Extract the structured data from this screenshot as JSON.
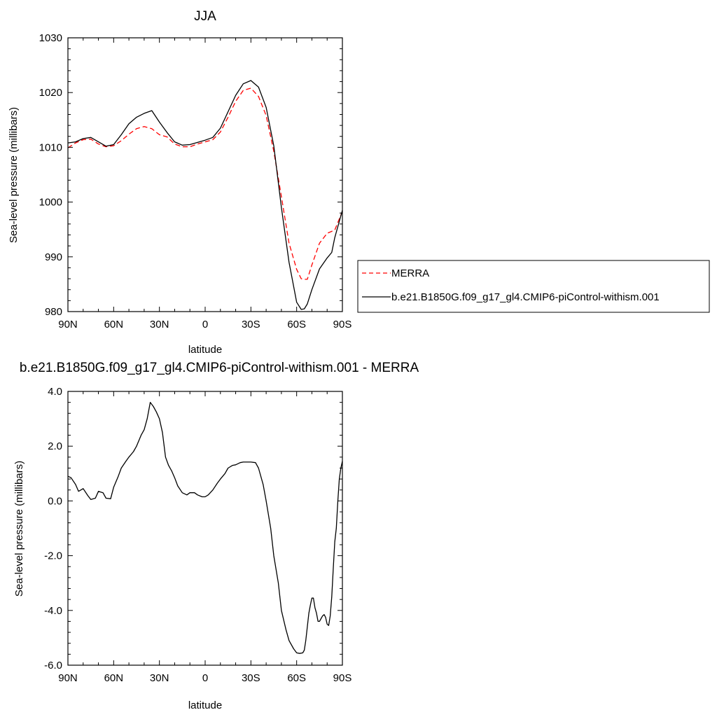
{
  "chart_data": [
    {
      "type": "line",
      "title": "JJA",
      "xlabel": "latitude",
      "ylabel": "Sea-level pressure (millibars)",
      "x_ticks": [
        "90N",
        "60N",
        "30N",
        "0",
        "30S",
        "60S",
        "90S"
      ],
      "x_tick_values": [
        90,
        60,
        30,
        0,
        -30,
        -60,
        -90
      ],
      "xlim": [
        90,
        -90
      ],
      "y_ticks": [
        "980",
        "990",
        "1000",
        "1010",
        "1020",
        "1030"
      ],
      "y_tick_values": [
        980,
        990,
        1000,
        1010,
        1020,
        1030
      ],
      "ylim": [
        980,
        1030
      ],
      "grid": false,
      "legend_position": "right",
      "series": [
        {
          "name": "MERRA",
          "color": "#ff0000",
          "style": "dashed",
          "x": [
            90,
            85,
            80,
            75,
            70,
            65,
            60,
            55,
            50,
            45,
            40,
            35,
            30,
            25,
            20,
            15,
            10,
            5,
            0,
            -5,
            -10,
            -15,
            -20,
            -25,
            -30,
            -35,
            -40,
            -45,
            -50,
            -55,
            -60,
            -63,
            -65,
            -67,
            -70,
            -75,
            -80,
            -85,
            -90
          ],
          "y": [
            1009.9,
            1010.8,
            1011.4,
            1011.5,
            1010.6,
            1010.1,
            1010.3,
            1011.2,
            1012.4,
            1013.4,
            1013.8,
            1013.4,
            1012.3,
            1011.9,
            1010.6,
            1010.1,
            1010.1,
            1010.6,
            1011.0,
            1011.4,
            1012.8,
            1015.5,
            1018.4,
            1020.4,
            1020.8,
            1019.3,
            1015.8,
            1009.3,
            1001.0,
            992.5,
            987.7,
            986.0,
            985.9,
            985.9,
            988.5,
            992.5,
            994.3,
            994.9,
            998.3
          ]
        },
        {
          "name": "b.e21.B1850G.f09_g17_gl4.CMIP6-piControl-withism.001",
          "color": "#000000",
          "style": "solid",
          "x": [
            90,
            85,
            80,
            75,
            70,
            65,
            60,
            55,
            50,
            45,
            40,
            35,
            30,
            25,
            20,
            15,
            10,
            5,
            0,
            -5,
            -10,
            -15,
            -20,
            -25,
            -30,
            -35,
            -40,
            -45,
            -50,
            -55,
            -60,
            -63,
            -65,
            -67,
            -70,
            -75,
            -80,
            -83,
            -85,
            -90
          ],
          "y": [
            1010.8,
            1011.0,
            1011.6,
            1011.8,
            1011.0,
            1010.2,
            1010.5,
            1012.3,
            1014.3,
            1015.5,
            1016.2,
            1016.7,
            1014.6,
            1012.7,
            1011.0,
            1010.4,
            1010.5,
            1010.9,
            1011.3,
            1011.8,
            1013.5,
            1016.5,
            1019.5,
            1021.6,
            1022.2,
            1021.0,
            1017.3,
            1010.3,
            999.0,
            989.0,
            981.7,
            980.4,
            980.5,
            981.4,
            984.0,
            987.8,
            989.8,
            990.8,
            993.5,
            998.5
          ]
        }
      ]
    },
    {
      "type": "line",
      "title": "b.e21.B1850G.f09_g17_gl4.CMIP6-piControl-withism.001 - MERRA",
      "xlabel": "latitude",
      "ylabel": "Sea-level pressure (millibars)",
      "x_ticks": [
        "90N",
        "60N",
        "30N",
        "0",
        "30S",
        "60S",
        "90S"
      ],
      "x_tick_values": [
        90,
        60,
        30,
        0,
        -30,
        -60,
        -90
      ],
      "xlim": [
        90,
        -90
      ],
      "y_ticks": [
        "-6.0",
        "-4.0",
        "-2.0",
        "0.0",
        "2.0",
        "4.0"
      ],
      "y_tick_values": [
        -6,
        -4,
        -2,
        0,
        2,
        4
      ],
      "ylim": [
        -6,
        4
      ],
      "grid": false,
      "series": [
        {
          "color": "#000000",
          "style": "solid",
          "x": [
            90,
            88,
            85,
            83,
            80,
            77,
            75,
            72,
            70,
            67,
            65,
            62,
            60,
            57,
            55,
            52,
            50,
            47,
            45,
            42,
            40,
            38,
            36,
            34,
            32,
            30,
            28,
            26,
            24,
            22,
            20,
            18,
            15,
            12,
            10,
            7,
            5,
            2,
            0,
            -2,
            -5,
            -8,
            -10,
            -13,
            -15,
            -18,
            -20,
            -23,
            -25,
            -28,
            -30,
            -33,
            -35,
            -38,
            -40,
            -43,
            -45,
            -48,
            -50,
            -53,
            -55,
            -58,
            -60,
            -62,
            -64,
            -65,
            -66,
            -67,
            -68,
            -69,
            -70,
            -71,
            -72,
            -73,
            -74,
            -75,
            -76,
            -77,
            -78,
            -79,
            -80,
            -81,
            -82,
            -83,
            -84,
            -85,
            -86,
            -87,
            -88,
            -89,
            -90
          ],
          "y": [
            0.9,
            0.85,
            0.6,
            0.35,
            0.45,
            0.2,
            0.05,
            0.1,
            0.35,
            0.3,
            0.1,
            0.08,
            0.5,
            0.9,
            1.2,
            1.45,
            1.6,
            1.8,
            2.0,
            2.4,
            2.6,
            3.0,
            3.6,
            3.45,
            3.25,
            3.0,
            2.5,
            1.6,
            1.3,
            1.1,
            0.85,
            0.55,
            0.3,
            0.22,
            0.3,
            0.3,
            0.22,
            0.15,
            0.15,
            0.22,
            0.4,
            0.65,
            0.8,
            1.0,
            1.2,
            1.3,
            1.32,
            1.4,
            1.42,
            1.42,
            1.42,
            1.4,
            1.2,
            0.6,
            0.0,
            -1.0,
            -2.0,
            -3.0,
            -4.0,
            -4.7,
            -5.1,
            -5.4,
            -5.55,
            -5.57,
            -5.55,
            -5.45,
            -5.1,
            -4.6,
            -4.1,
            -3.8,
            -3.55,
            -3.55,
            -3.9,
            -4.1,
            -4.4,
            -4.4,
            -4.3,
            -4.2,
            -4.15,
            -4.25,
            -4.5,
            -4.55,
            -4.2,
            -3.5,
            -2.5,
            -1.5,
            -1.0,
            0.0,
            0.8,
            1.2,
            1.45
          ]
        }
      ]
    }
  ]
}
